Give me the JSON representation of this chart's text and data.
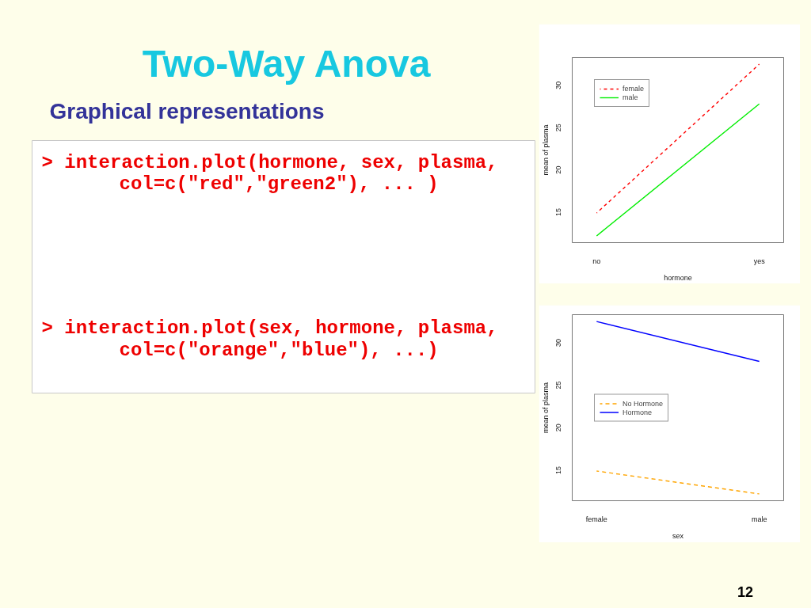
{
  "chart_data": [
    {
      "type": "other",
      "title": "Two-Way Anova",
      "subtitle": "Graphical representations",
      "annotations": [
        "> interaction.plot(hormone, sex, plasma,",
        "col=c(\"red\",\"green2\"), ... )",
        "> interaction.plot(sex, hormone, plasma,",
        "col=c(\"orange\",\"blue\"), ...)",
        "12"
      ]
    },
    {
      "type": "line",
      "categories": [
        "no",
        "yes"
      ],
      "xlabel": "hormone",
      "ylabel": "mean of plasma",
      "ylim": [
        11.4,
        33.3
      ],
      "yticks": [
        15,
        20,
        25,
        30
      ],
      "legend": "top left",
      "series": [
        {
          "name": "female",
          "color": "#ff0000",
          "line_style": "dashed",
          "values": [
            14.9,
            32.5
          ]
        },
        {
          "name": "male",
          "color": "#00ee00",
          "line_style": "solid",
          "values": [
            12.2,
            27.8
          ]
        }
      ]
    },
    {
      "type": "line",
      "categories": [
        "female",
        "male"
      ],
      "xlabel": "sex",
      "ylabel": "mean of plasma",
      "ylim": [
        11.4,
        33.3
      ],
      "yticks": [
        15,
        20,
        25,
        30
      ],
      "legend": "left",
      "series": [
        {
          "name": "No Hormone",
          "color": "#ffa500",
          "line_style": "dashed",
          "values": [
            14.9,
            12.2
          ]
        },
        {
          "name": "Hormone",
          "color": "#0000ff",
          "line_style": "solid",
          "values": [
            32.5,
            27.8
          ]
        }
      ]
    }
  ]
}
